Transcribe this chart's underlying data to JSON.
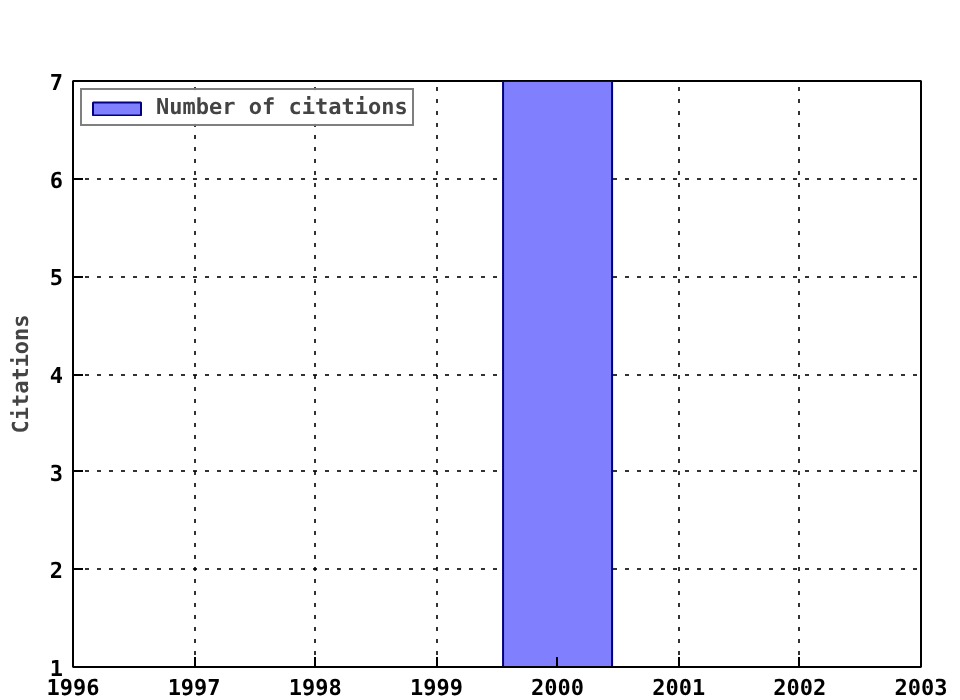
{
  "chart_data": {
    "type": "bar",
    "ylabel": "Citations",
    "x": [
      2000
    ],
    "series": [
      {
        "name": "Number of citations",
        "color": "#8080ff",
        "values": [
          7
        ]
      }
    ],
    "xlim": [
      1996,
      2003
    ],
    "xticks": [
      1996,
      1997,
      1998,
      1999,
      2000,
      2001,
      2002,
      2003
    ],
    "ylim": [
      1,
      7
    ],
    "yticks": [
      1,
      2,
      3,
      4,
      5,
      6,
      7
    ],
    "grid": true,
    "legend": "top left"
  }
}
